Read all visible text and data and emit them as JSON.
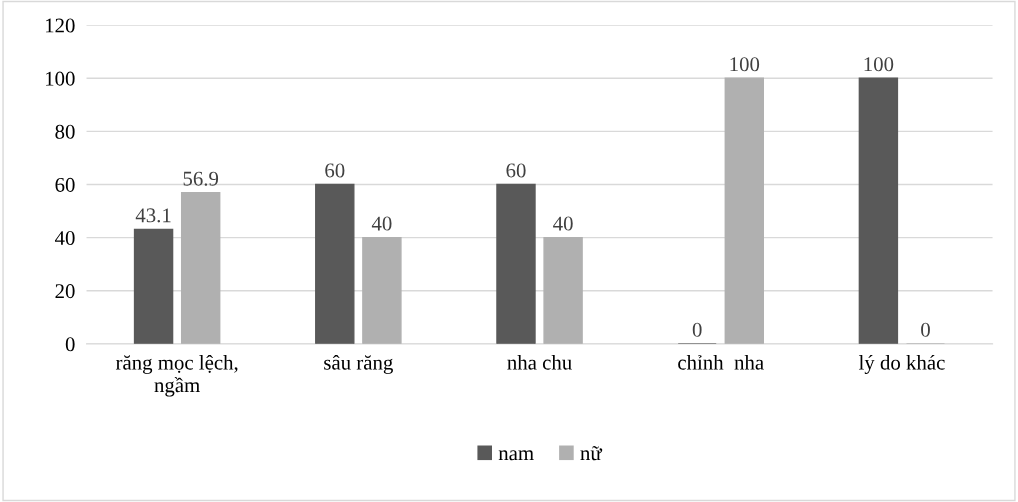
{
  "chart_data": {
    "type": "bar",
    "categories": [
      "răng mọc lệch,\nngầm",
      "sâu răng",
      "nha chu",
      "chỉnh  nha",
      "lý do khác"
    ],
    "series": [
      {
        "name": "nam",
        "color": "#595959",
        "values": [
          43.1,
          60,
          60,
          0,
          100
        ]
      },
      {
        "name": "nữ",
        "color": "#b0b0b0",
        "values": [
          56.9,
          40,
          40,
          100,
          0
        ]
      }
    ],
    "ylim": [
      0,
      120
    ],
    "yticks": [
      0,
      20,
      40,
      60,
      80,
      100,
      120
    ],
    "grid": "y",
    "legend": "bottom",
    "data_labels": true
  }
}
